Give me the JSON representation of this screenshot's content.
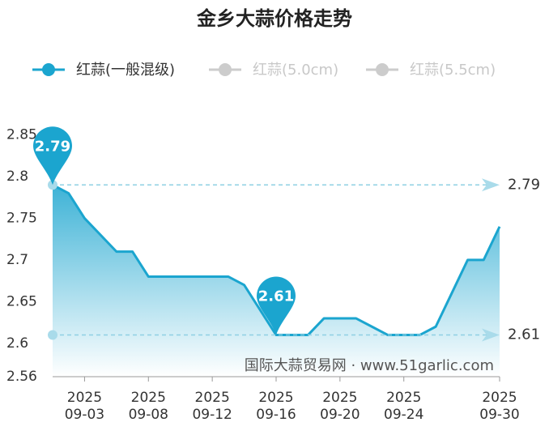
{
  "chart_data": {
    "type": "area-line",
    "title": "金乡大蒜价格走势",
    "categories": [
      null,
      null,
      "2025\n09-03",
      null,
      null,
      null,
      "2025\n09-08",
      null,
      null,
      null,
      "2025\n09-12",
      null,
      null,
      null,
      "2025\n09-16",
      null,
      null,
      null,
      "2025\n09-20",
      null,
      null,
      null,
      "2025\n09-24",
      null,
      null,
      null,
      null,
      null,
      "2025\n09-30"
    ],
    "series": [
      {
        "name": "红蒜(一般混级)",
        "color": "#1ba5cf",
        "values": [
          2.79,
          2.78,
          2.75,
          2.73,
          2.71,
          2.71,
          2.68,
          2.68,
          2.68,
          2.68,
          2.68,
          2.68,
          2.67,
          2.64,
          2.61,
          2.61,
          2.61,
          2.63,
          2.63,
          2.63,
          2.62,
          2.61,
          2.61,
          2.61,
          2.62,
          2.66,
          2.7,
          2.7,
          2.74
        ]
      },
      {
        "name": "红蒜(5.0cm)",
        "color": "#cccccc",
        "hidden": true
      },
      {
        "name": "红蒜(5.5cm)",
        "color": "#cccccc",
        "hidden": true
      }
    ],
    "ylim": [
      2.56,
      2.85
    ],
    "yticks": [
      2.56,
      2.6,
      2.65,
      2.7,
      2.75,
      2.8,
      2.85
    ],
    "max_point": 2.79,
    "min_point": 2.61,
    "watermark": "国际大蒜贸易网 · www.51garlic.com"
  }
}
